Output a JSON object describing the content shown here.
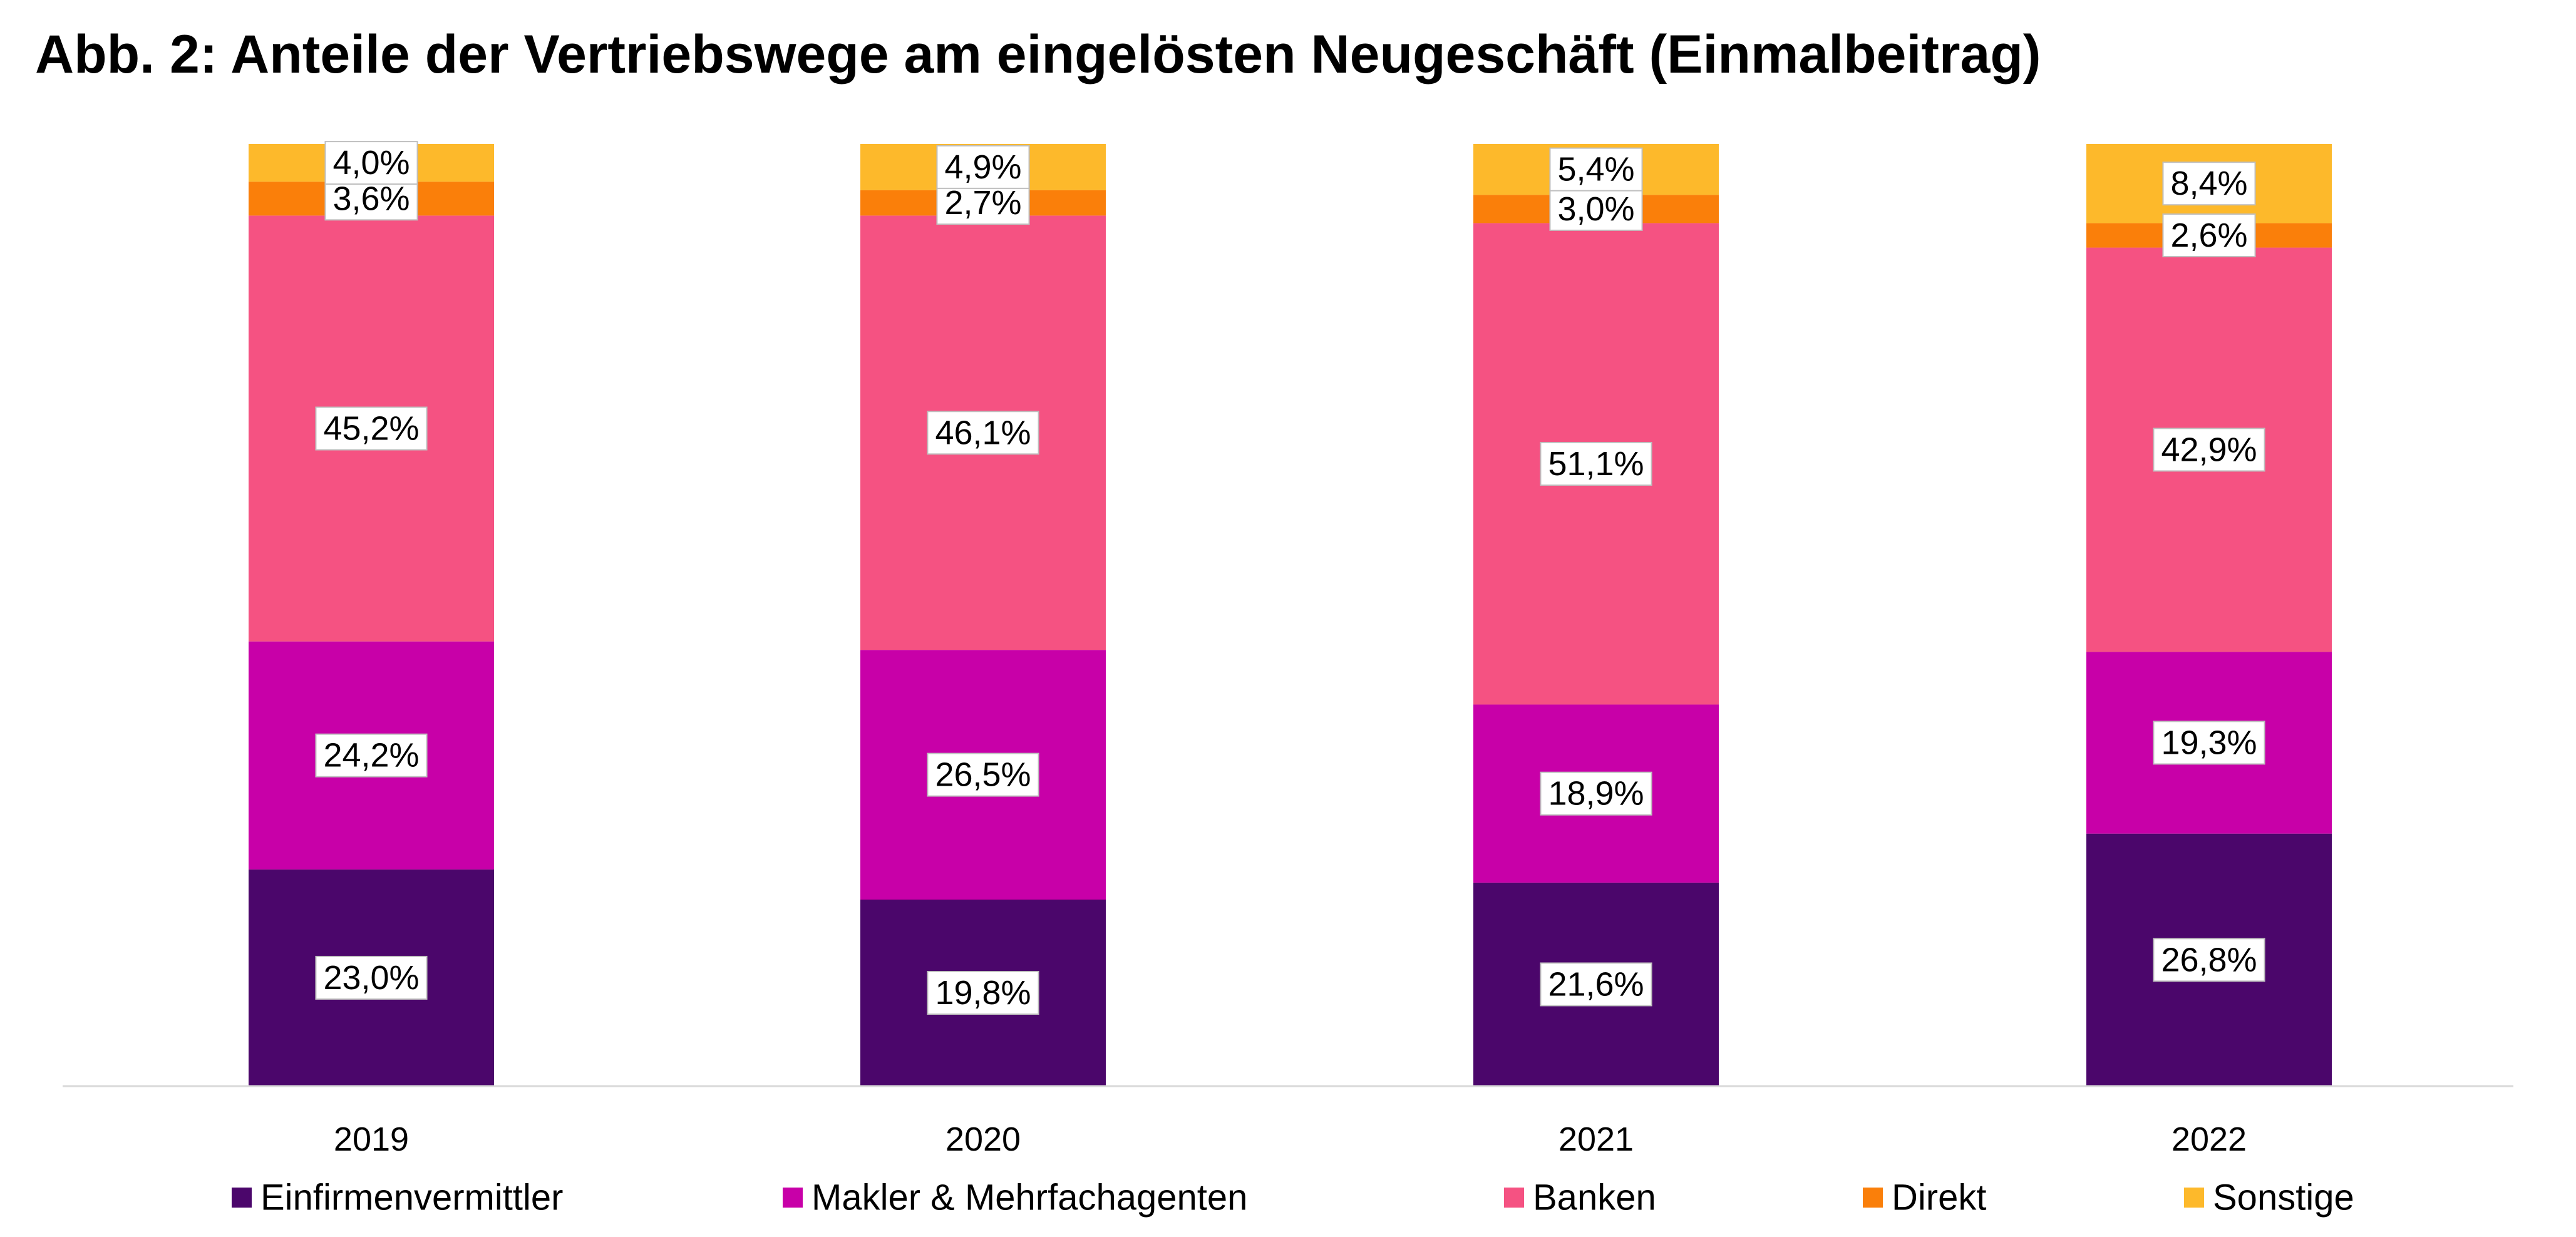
{
  "chart_data": {
    "type": "bar",
    "stacked": true,
    "title": "Abb. 2: Anteile der Vertriebswege am eingelösten Neugeschäft (Einmalbeitrag)",
    "xlabel": "",
    "ylabel": "",
    "ylim": [
      0,
      100
    ],
    "grid": false,
    "legend_position": "bottom",
    "categories": [
      "2019",
      "2020",
      "2021",
      "2022"
    ],
    "series": [
      {
        "name": "Einfirmenvermittler",
        "color": "#4B066B",
        "values": [
          23.0,
          19.8,
          21.6,
          26.8
        ],
        "labels": [
          "23,0%",
          "19,8%",
          "21,6%",
          "26,8%"
        ]
      },
      {
        "name": "Makler & Mehrfachagenten",
        "color": "#C800A8",
        "values": [
          24.2,
          26.5,
          18.9,
          19.3
        ],
        "labels": [
          "24,2%",
          "26,5%",
          "18,9%",
          "19,3%"
        ]
      },
      {
        "name": "Banken",
        "color": "#F55282",
        "values": [
          45.2,
          46.1,
          51.1,
          42.9
        ],
        "labels": [
          "45,2%",
          "46,1%",
          "51,1%",
          "42,9%"
        ]
      },
      {
        "name": "Direkt",
        "color": "#FA7F0A",
        "values": [
          3.6,
          2.7,
          3.0,
          2.6
        ],
        "labels": [
          "3,6%",
          "2,7%",
          "3,0%",
          "2,6%"
        ]
      },
      {
        "name": "Sonstige",
        "color": "#FDB92B",
        "values": [
          4.0,
          4.9,
          5.4,
          8.4
        ],
        "labels": [
          "4,0%",
          "4,9%",
          "5,4%",
          "8,4%"
        ]
      }
    ]
  }
}
